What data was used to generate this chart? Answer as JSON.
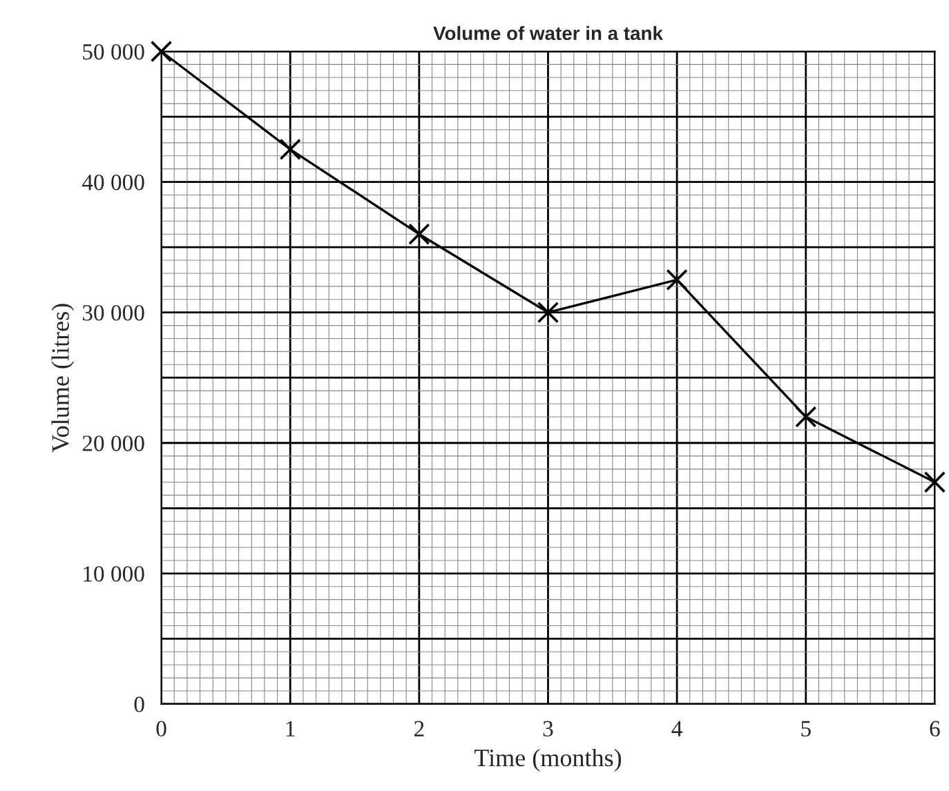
{
  "chart_data": {
    "type": "line",
    "title": "Volume of water in a tank",
    "xlabel": "Time (months)",
    "ylabel": "Volume (litres)",
    "x": [
      0,
      1,
      2,
      3,
      4,
      5,
      6
    ],
    "series": [
      {
        "color": "#000000",
        "values": [
          50000,
          42500,
          36000,
          30000,
          32500,
          22000,
          17000
        ]
      }
    ],
    "xlim": [
      0,
      6
    ],
    "xticks": [
      0,
      1,
      2,
      3,
      4,
      5,
      6
    ],
    "ylim": [
      0,
      50000
    ],
    "yticks": [
      {
        "value": 0,
        "label": "0"
      },
      {
        "value": 10000,
        "label": "10 000"
      },
      {
        "value": 20000,
        "label": "20 000"
      },
      {
        "value": 30000,
        "label": "30 000"
      },
      {
        "value": 40000,
        "label": "40 000"
      },
      {
        "value": 50000,
        "label": "50 000"
      }
    ],
    "grid": true,
    "marker": "cross",
    "line_style": "solid"
  }
}
